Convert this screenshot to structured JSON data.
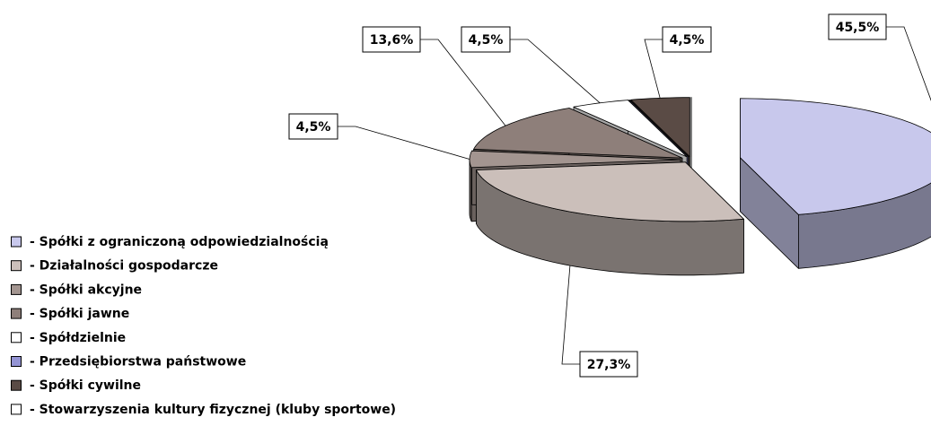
{
  "chart_data": {
    "type": "pie3d",
    "categories": [
      "- Spółki z ograniczoną odpowiedzialnością",
      "- Działalności gospodarcze",
      "- Spółki akcyjne",
      "- Spółki jawne",
      "- Spółdzielnie",
      "- Przedsiębiorstwa państwowe",
      "- Spółki cywilne",
      "- Stowarzyszenia kultury fizycznej (kluby sportowe)"
    ],
    "values": [
      45.5,
      27.3,
      4.5,
      13.6,
      4.5,
      0,
      4.5,
      0
    ],
    "value_labels": [
      "45,5%",
      "27,3%",
      "4,5%",
      "13,6%",
      "4,5%",
      null,
      "4,5%",
      null
    ],
    "colors": [
      "#c8c8ec",
      "#cbbfba",
      "#a39590",
      "#8e7f7a",
      "#ffffff",
      "#9494d4",
      "#5a4b45",
      "#ffffff"
    ]
  }
}
